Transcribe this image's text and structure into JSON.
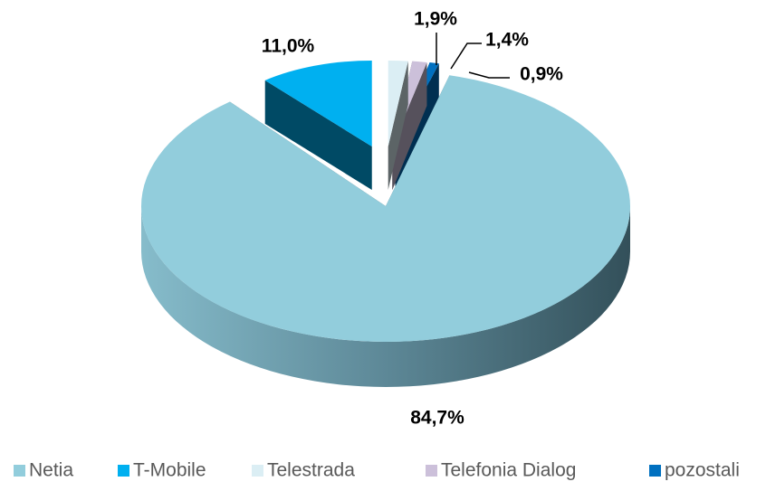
{
  "chart_data": {
    "type": "pie",
    "categories": [
      "Netia",
      "T-Mobile",
      "Telestrada",
      "Telefonia Dialog",
      "pozostali"
    ],
    "values": [
      84.7,
      11.0,
      1.9,
      1.4,
      0.9
    ],
    "value_labels": [
      "84,7%",
      "11,0%",
      "1,9%",
      "1,4%",
      "0,9%"
    ],
    "colors": [
      "#92cddc",
      "#00b0f0",
      "#dbeef4",
      "#ccc0da",
      "#0070c0"
    ],
    "legend": "bottom"
  }
}
